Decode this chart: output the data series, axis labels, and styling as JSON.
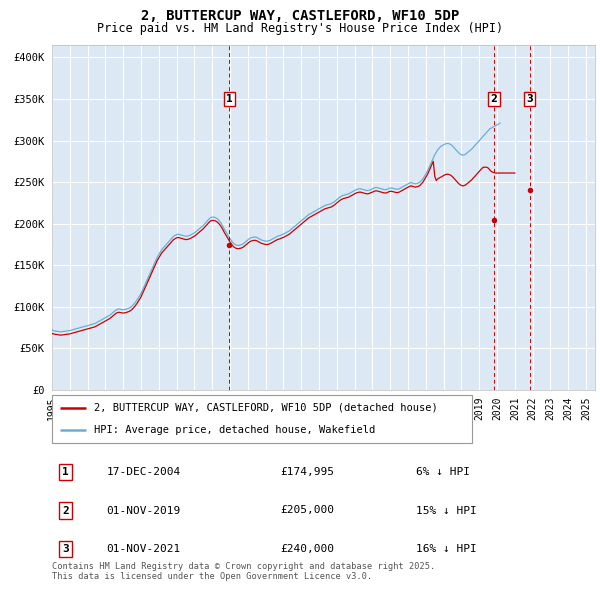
{
  "title": "2, BUTTERCUP WAY, CASTLEFORD, WF10 5DP",
  "subtitle": "Price paid vs. HM Land Registry's House Price Index (HPI)",
  "ylabel_ticks": [
    "£0",
    "£50K",
    "£100K",
    "£150K",
    "£200K",
    "£250K",
    "£300K",
    "£350K",
    "£400K"
  ],
  "ytick_values": [
    0,
    50000,
    100000,
    150000,
    200000,
    250000,
    300000,
    350000,
    400000
  ],
  "ylim": [
    0,
    415000
  ],
  "xlim_start": 1995.0,
  "xlim_end": 2025.5,
  "background_color": "#dce9f5",
  "grid_color": "#ffffff",
  "hpi_line_color": "#6aaed6",
  "price_line_color": "#cc0000",
  "sale_marker_color": "#cc0000",
  "vline_color": "#cc0000",
  "sale_events": [
    {
      "label": "1",
      "date_str": "17-DEC-2004",
      "price": 174995,
      "pct": "6%",
      "direction": "↓",
      "year": 2004.96
    },
    {
      "label": "2",
      "date_str": "01-NOV-2019",
      "price": 205000,
      "pct": "15%",
      "direction": "↓",
      "year": 2019.83
    },
    {
      "label": "3",
      "date_str": "01-NOV-2021",
      "price": 240000,
      "pct": "16%",
      "direction": "↓",
      "year": 2021.83
    }
  ],
  "legend_line1": "2, BUTTERCUP WAY, CASTLEFORD, WF10 5DP (detached house)",
  "legend_line2": "HPI: Average price, detached house, Wakefield",
  "footer": "Contains HM Land Registry data © Crown copyright and database right 2025.\nThis data is licensed under the Open Government Licence v3.0.",
  "hpi_data_monthly": {
    "start_year": 1995,
    "start_month": 1,
    "values": [
      72000,
      71500,
      71000,
      70800,
      70500,
      70200,
      70000,
      70200,
      70500,
      70800,
      71000,
      71200,
      71500,
      72000,
      72500,
      73000,
      73500,
      74000,
      74500,
      75000,
      75500,
      76000,
      76500,
      77000,
      77500,
      78000,
      78500,
      79000,
      79500,
      80000,
      81000,
      82000,
      83000,
      84000,
      85000,
      86000,
      87000,
      88000,
      89000,
      90000,
      91500,
      93000,
      94500,
      96000,
      97000,
      97500,
      97200,
      96800,
      96500,
      96800,
      97200,
      97800,
      98500,
      99500,
      101000,
      103000,
      105000,
      107500,
      110000,
      113000,
      116000,
      120000,
      124000,
      128000,
      132000,
      136000,
      140000,
      144000,
      148000,
      152000,
      156000,
      160000,
      163000,
      166000,
      169000,
      171000,
      173000,
      175000,
      177000,
      179000,
      181000,
      183000,
      185000,
      186000,
      187000,
      187500,
      187000,
      186500,
      186000,
      185500,
      185000,
      185000,
      185500,
      186000,
      187000,
      188000,
      189000,
      190500,
      192000,
      193500,
      195000,
      196500,
      198000,
      200000,
      202000,
      204000,
      206000,
      207500,
      208000,
      208000,
      207500,
      206500,
      205000,
      203000,
      200500,
      197500,
      194000,
      191000,
      188000,
      185000,
      182000,
      179500,
      177000,
      175500,
      174500,
      174000,
      174000,
      174500,
      175000,
      176000,
      177500,
      179000,
      180500,
      182000,
      183000,
      183500,
      184000,
      184000,
      183500,
      182500,
      181500,
      180500,
      180000,
      179500,
      179000,
      179000,
      179500,
      180000,
      181000,
      182000,
      183000,
      184000,
      185000,
      185500,
      186000,
      187000,
      187500,
      188500,
      189500,
      190500,
      191500,
      193000,
      194500,
      196000,
      197500,
      199000,
      200500,
      202000,
      203500,
      205000,
      206500,
      208000,
      209500,
      211000,
      212000,
      213000,
      214000,
      215000,
      216000,
      217000,
      218000,
      219000,
      220000,
      221000,
      222000,
      222500,
      223000,
      223500,
      224000,
      225000,
      226000,
      227500,
      229000,
      230500,
      232000,
      233000,
      234000,
      234500,
      235000,
      235500,
      236000,
      237000,
      238000,
      239000,
      240000,
      241000,
      241500,
      242000,
      242000,
      241500,
      241000,
      240500,
      240000,
      240000,
      240500,
      241000,
      242000,
      243000,
      243500,
      243500,
      243000,
      242500,
      242000,
      241500,
      241000,
      241000,
      241500,
      242500,
      243000,
      243000,
      242500,
      242000,
      241500,
      241500,
      242000,
      243000,
      244000,
      245000,
      246000,
      247000,
      248000,
      249000,
      249500,
      249000,
      248500,
      248000,
      248500,
      249000,
      250000,
      252000,
      254000,
      257000,
      260000,
      263000,
      267000,
      271000,
      275000,
      279000,
      283000,
      286000,
      289000,
      291000,
      293000,
      294000,
      295000,
      296000,
      296500,
      296500,
      296000,
      295000,
      293500,
      291500,
      289500,
      287500,
      285500,
      284000,
      283000,
      282500,
      283000,
      284000,
      285500,
      287000,
      288500,
      290000,
      292000,
      294000,
      296000,
      298000,
      300000,
      302000,
      304000,
      306000,
      308000,
      310000,
      312000,
      314000,
      315000,
      316000,
      317000,
      318000,
      319000,
      320000,
      321000
    ]
  },
  "price_data_monthly": {
    "start_year": 1995,
    "start_month": 1,
    "values": [
      68000,
      67500,
      67000,
      66800,
      66500,
      66200,
      66000,
      66200,
      66500,
      66800,
      67000,
      67200,
      67500,
      68000,
      68500,
      69000,
      69500,
      70000,
      70500,
      71000,
      71500,
      72000,
      72500,
      73000,
      73500,
      74000,
      74500,
      75000,
      75500,
      76000,
      77000,
      78000,
      79000,
      80000,
      81000,
      82000,
      83000,
      84000,
      85000,
      86000,
      87500,
      89000,
      90500,
      92000,
      93000,
      93500,
      93200,
      92800,
      92500,
      92800,
      93200,
      93800,
      94500,
      95500,
      97000,
      99000,
      101000,
      103500,
      106000,
      109000,
      112000,
      116000,
      120000,
      124000,
      128000,
      132000,
      136000,
      140000,
      144000,
      148000,
      152000,
      156000,
      159000,
      162000,
      165000,
      167000,
      169000,
      171000,
      173000,
      175000,
      177000,
      179000,
      181000,
      182000,
      183000,
      183500,
      183000,
      182500,
      182000,
      181500,
      181000,
      181000,
      181500,
      182000,
      183000,
      184000,
      185000,
      186500,
      188000,
      189500,
      191000,
      192500,
      194000,
      196000,
      198000,
      200000,
      202000,
      203500,
      204000,
      204000,
      203500,
      202500,
      201000,
      199000,
      196500,
      193500,
      190000,
      187000,
      184000,
      181000,
      178000,
      175500,
      173000,
      171500,
      170500,
      170000,
      170000,
      170500,
      171000,
      172000,
      173500,
      175000,
      176500,
      178000,
      179000,
      179500,
      180000,
      180000,
      179500,
      178500,
      177500,
      176500,
      176000,
      175500,
      175000,
      175000,
      175500,
      176000,
      177000,
      178000,
      179000,
      180000,
      181000,
      181500,
      182000,
      183000,
      183500,
      184500,
      185500,
      186500,
      187500,
      189000,
      190500,
      192000,
      193500,
      195000,
      196500,
      198000,
      199500,
      201000,
      202500,
      204000,
      205500,
      207000,
      208000,
      209000,
      210000,
      211000,
      212000,
      213000,
      214000,
      215000,
      216000,
      217000,
      218000,
      218500,
      219000,
      219500,
      220000,
      221000,
      222000,
      223500,
      225000,
      226500,
      228000,
      229000,
      230000,
      230500,
      231000,
      231500,
      232000,
      233000,
      234000,
      235000,
      236000,
      237000,
      237500,
      238000,
      238000,
      237500,
      237000,
      236500,
      236000,
      236000,
      236500,
      237500,
      238000,
      239000,
      239500,
      239500,
      239000,
      238500,
      238000,
      237500,
      237000,
      237000,
      237500,
      238500,
      239000,
      239000,
      238500,
      238000,
      237500,
      237500,
      238000,
      239000,
      240000,
      241000,
      242000,
      243000,
      244000,
      245000,
      245500,
      245000,
      244500,
      244000,
      244500,
      245000,
      246000,
      248000,
      250000,
      253000,
      256000,
      259000,
      263000,
      267000,
      271000,
      275000,
      257000,
      252000,
      254000,
      255000,
      256000,
      257000,
      258000,
      259000,
      259500,
      259500,
      259000,
      258000,
      256500,
      254500,
      252500,
      250500,
      248500,
      247000,
      246000,
      245500,
      246000,
      247000,
      248500,
      250000,
      251500,
      253000,
      255000,
      257000,
      259000,
      261000,
      263000,
      265000,
      267000,
      268000,
      268000,
      268000,
      267000,
      265000,
      263000,
      262000,
      261500,
      261000,
      261000,
      261000,
      261000,
      261000,
      261000,
      261000,
      261000,
      261000,
      261000,
      261000,
      261000,
      261000,
      261000
    ]
  }
}
